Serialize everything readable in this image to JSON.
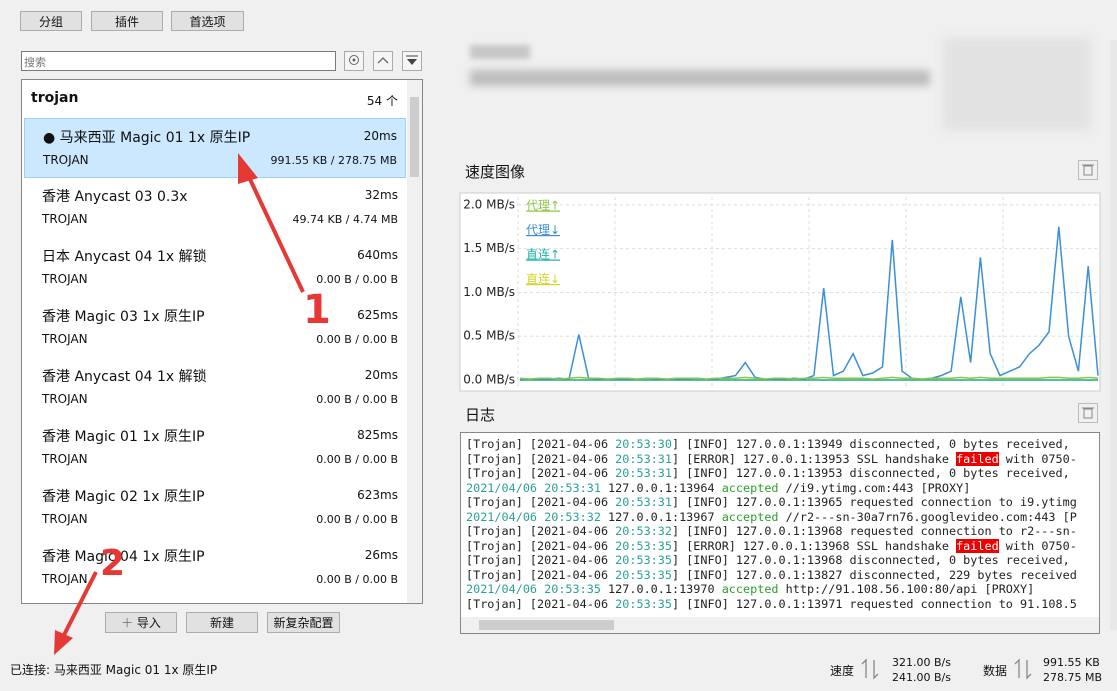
{
  "toolbar": {
    "buttons": [
      "分组",
      "插件",
      "首选项"
    ]
  },
  "search_placeholder": "搜索",
  "group": {
    "name": "trojan",
    "count": "54 个"
  },
  "servers": [
    {
      "name": "● 马来西亚 Magic 01 1x 原生IP",
      "latency": "20ms",
      "protocol": "TROJAN",
      "traffic": "991.55 KB / 278.75 MB"
    },
    {
      "name": "香港 Anycast 03 0.3x",
      "latency": "32ms",
      "protocol": "TROJAN",
      "traffic": "49.74 KB / 4.74 MB"
    },
    {
      "name": "日本 Anycast 04 1x 解锁",
      "latency": "640ms",
      "protocol": "TROJAN",
      "traffic": "0.00 B / 0.00 B"
    },
    {
      "name": "香港 Magic 03 1x 原生IP",
      "latency": "625ms",
      "protocol": "TROJAN",
      "traffic": "0.00 B / 0.00 B"
    },
    {
      "name": "香港 Anycast 04 1x 解锁",
      "latency": "20ms",
      "protocol": "TROJAN",
      "traffic": "0.00 B / 0.00 B"
    },
    {
      "name": "香港 Magic 01 1x 原生IP",
      "latency": "825ms",
      "protocol": "TROJAN",
      "traffic": "0.00 B / 0.00 B"
    },
    {
      "name": "香港 Magic 02 1x 原生IP",
      "latency": "623ms",
      "protocol": "TROJAN",
      "traffic": "0.00 B / 0.00 B"
    },
    {
      "name": "香港 Magic 04 1x 原生IP",
      "latency": "26ms",
      "protocol": "TROJAN",
      "traffic": "0.00 B / 0.00 B"
    }
  ],
  "list_buttons": [
    "导入",
    "新建",
    "新复杂配置"
  ],
  "status": "已连接: 马来西亚 Magic 01 1x 原生IP",
  "speed_graph": {
    "type": "line",
    "title": "速度图像",
    "ylim": [
      -0.08,
      2.09
    ],
    "yticks": [
      {
        "value": 0,
        "label": "0.0 MB/s"
      },
      {
        "value": 0.5,
        "label": "0.5 MB/s"
      },
      {
        "value": 1,
        "label": "1.0 MB/s"
      },
      {
        "value": 1.5,
        "label": "1.5 MB/s"
      },
      {
        "value": 2,
        "label": "2.0 MB/s"
      }
    ],
    "grid": true,
    "series": [
      {
        "name": "代理↑",
        "color": "#8cc63f",
        "values": [
          0.02,
          0.01,
          0.02,
          0.02,
          0.01,
          0.02,
          0.03,
          0.02,
          0.02,
          0.01,
          0.02,
          0.02,
          0.01,
          0.02,
          0.02,
          0.01,
          0.02,
          0.02,
          0.02,
          0.01,
          0.02,
          0.02,
          0.02,
          0.03,
          0.02,
          0.01,
          0.02,
          0.02,
          0.01,
          0.02,
          0.02,
          0.03,
          0.02,
          0.02,
          0.02,
          0.02,
          0.01,
          0.02,
          0.03,
          0.02,
          0.02,
          0.01,
          0.02,
          0.02,
          0.02,
          0.03,
          0.02,
          0.03,
          0.02,
          0.02,
          0.02,
          0.02,
          0.02,
          0.02,
          0.03,
          0.03,
          0.02,
          0.02,
          0.03,
          0.02
        ]
      },
      {
        "name": "代理↓",
        "color": "#3a8fd8",
        "values": [
          0.01,
          0.01,
          0.01,
          0.01,
          0.02,
          0.01,
          0.52,
          0.02,
          0.01,
          0.01,
          0.01,
          0.01,
          0.01,
          0.02,
          0.01,
          0.01,
          0.01,
          0.01,
          0.02,
          0.01,
          0.01,
          0.03,
          0.05,
          0.2,
          0.03,
          0.01,
          0.01,
          0.01,
          0.02,
          0.01,
          0.05,
          1.05,
          0.05,
          0.1,
          0.3,
          0.05,
          0.08,
          0.15,
          1.6,
          0.1,
          0.02,
          0.01,
          0.02,
          0.05,
          0.1,
          0.95,
          0.2,
          1.4,
          0.3,
          0.05,
          0.1,
          0.15,
          0.3,
          0.4,
          0.55,
          1.75,
          0.5,
          0.1,
          1.3,
          0.05
        ]
      },
      {
        "name": "直连↑",
        "color": "#20b2aa",
        "values": [
          0,
          0,
          0,
          0,
          0,
          0,
          0,
          0,
          0,
          0,
          0,
          0,
          0,
          0,
          0,
          0,
          0,
          0,
          0,
          0,
          0,
          0,
          0,
          0,
          0,
          0,
          0,
          0,
          0,
          0,
          0,
          0,
          0,
          0,
          0,
          0,
          0,
          0,
          0,
          0,
          0,
          0,
          0,
          0,
          0,
          0,
          0,
          0,
          0,
          0,
          0,
          0,
          0,
          0,
          0,
          0,
          0,
          0,
          0,
          0
        ]
      },
      {
        "name": "直连↓",
        "color": "#d4d42a",
        "values": [
          0,
          0,
          0,
          0,
          0,
          0,
          0,
          0,
          0,
          0,
          0,
          0,
          0,
          0,
          0,
          0,
          0,
          0,
          0,
          0,
          0,
          0,
          0,
          0,
          0,
          0,
          0,
          0,
          0,
          0,
          0,
          0,
          0,
          0,
          0,
          0,
          0,
          0,
          0,
          0,
          0,
          0,
          0,
          0,
          0,
          0,
          0,
          0,
          0,
          0,
          0,
          0,
          0,
          0,
          0,
          0,
          0,
          0,
          0,
          0
        ]
      }
    ]
  },
  "log": {
    "title": "日志",
    "lines": [
      [
        "[Trojan] [2021-04-06 ",
        {
          "text": "20:53:30",
          "style": "time"
        },
        "] [INFO] 127.0.0.1:13949 disconnected, 0 bytes received,"
      ],
      [
        "[Trojan] [2021-04-06 ",
        {
          "text": "20:53:31",
          "style": "time"
        },
        "] [ERROR] 127.0.0.1:13953 SSL handshake ",
        {
          "text": "failed",
          "style": "error"
        },
        " with 0750-"
      ],
      [
        "[Trojan] [2021-04-06 ",
        {
          "text": "20:53:31",
          "style": "time"
        },
        "] [INFO] 127.0.0.1:13953 disconnected, 0 bytes received,"
      ],
      [
        {
          "text": "2021/04/06 20:53:31",
          "style": "time"
        },
        " 127.0.0.1:13964 ",
        {
          "text": "accepted",
          "style": "ok"
        },
        " //i9.ytimg.com:443 [PROXY]"
      ],
      [
        "[Trojan] [2021-04-06 ",
        {
          "text": "20:53:31",
          "style": "time"
        },
        "] [INFO] 127.0.0.1:13965 requested connection to i9.ytimg"
      ],
      [
        {
          "text": "2021/04/06 20:53:32",
          "style": "time"
        },
        " 127.0.0.1:13967 ",
        {
          "text": "accepted",
          "style": "ok"
        },
        " //r2---sn-30a7rn76.googlevideo.com:443 [P"
      ],
      [
        "[Trojan] [2021-04-06 ",
        {
          "text": "20:53:32",
          "style": "time"
        },
        "] [INFO] 127.0.0.1:13968 requested connection to r2---sn-"
      ],
      [
        "[Trojan] [2021-04-06 ",
        {
          "text": "20:53:35",
          "style": "time"
        },
        "] [ERROR] 127.0.0.1:13968 SSL handshake ",
        {
          "text": "failed",
          "style": "error"
        },
        " with 0750-"
      ],
      [
        "[Trojan] [2021-04-06 ",
        {
          "text": "20:53:35",
          "style": "time"
        },
        "] [INFO] 127.0.0.1:13968 disconnected, 0 bytes received,"
      ],
      [
        "[Trojan] [2021-04-06 ",
        {
          "text": "20:53:35",
          "style": "time"
        },
        "] [INFO] 127.0.0.1:13827 disconnected, 229 bytes received"
      ],
      [
        {
          "text": "2021/04/06 20:53:35",
          "style": "time"
        },
        " 127.0.0.1:13970 ",
        {
          "text": "accepted",
          "style": "ok"
        },
        " http://91.108.56.100:80/api [PROXY]"
      ],
      [
        "[Trojan] [2021-04-06 ",
        {
          "text": "20:53:35",
          "style": "time"
        },
        "] [INFO] 127.0.0.1:13971 requested connection to 91.108.5"
      ]
    ]
  },
  "footer": {
    "speed_label": "速度",
    "speed_up": "321.00 B/s",
    "speed_down": "241.00 B/s",
    "data_label": "数据",
    "data_up": "991.55 KB",
    "data_down": "278.75 MB"
  },
  "annotations": [
    "1",
    "2"
  ]
}
